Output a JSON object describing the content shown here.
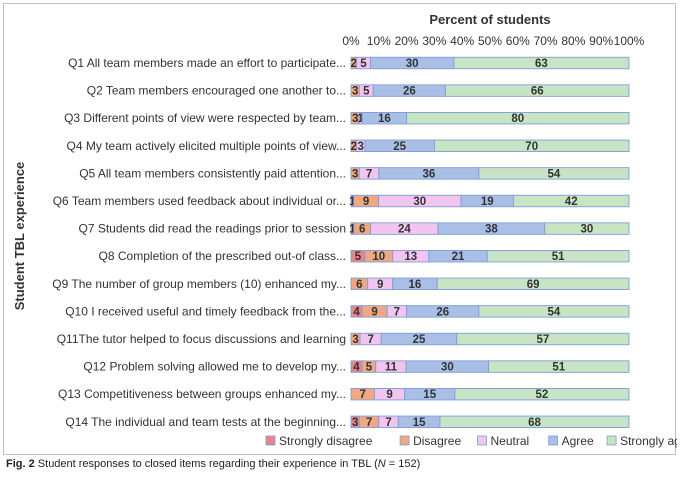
{
  "figure": {
    "caption_label": "Fig. 2",
    "caption_text": "Student responses to closed items regarding their experience in TBL (",
    "caption_n_symbol": "N",
    "caption_n_value": " = 152)"
  },
  "chart_data": {
    "type": "bar",
    "orientation": "horizontal",
    "stacked": "percent",
    "title": "Percent of students",
    "ylabel": "Student TBL experience",
    "xlim": [
      0,
      100
    ],
    "x_ticks": [
      "0%",
      "10%",
      "20%",
      "30%",
      "40%",
      "50%",
      "60%",
      "70%",
      "80%",
      "90%",
      "100%"
    ],
    "categories": [
      "Q1 All team members made an effort to participate...",
      "Q2 Team members encouraged one another to...",
      "Q3 Different points of view were respected by team...",
      "Q4 My team actively elicited multiple points of view...",
      "Q5 All team members consistently paid attention...",
      "Q6 Team members used feedback about individual or...",
      "Q7 Students did read the readings prior to session",
      "Q8 Completion of the prescribed out-of class...",
      "Q9 The number of group members (10) enhanced my...",
      "Q10 I received useful and timely feedback from the...",
      "Q11The tutor helped to focus discussions and learning",
      "Q12 Problem solving allowed me to develop my...",
      "Q13 Competitiveness between groups enhanced my...",
      "Q14 The individual and team tests at the beginning..."
    ],
    "series": [
      {
        "name": "Strongly disagree",
        "color": "#e8848c",
        "values": [
          0,
          0,
          0,
          0,
          0,
          1,
          1,
          5,
          0,
          4,
          0,
          4,
          0,
          3
        ]
      },
      {
        "name": "Disagree",
        "color": "#f0a882",
        "values": [
          2,
          3,
          3,
          2,
          3,
          9,
          6,
          10,
          6,
          9,
          3,
          5,
          7,
          7
        ]
      },
      {
        "name": "Neutral",
        "color": "#f2c4f0",
        "values": [
          5,
          5,
          1,
          3,
          7,
          30,
          24,
          13,
          9,
          7,
          7,
          11,
          9,
          7
        ]
      },
      {
        "name": "Agree",
        "color": "#a9bfe6",
        "values": [
          30,
          26,
          16,
          25,
          36,
          19,
          38,
          21,
          16,
          26,
          25,
          30,
          15,
          15
        ]
      },
      {
        "name": "Strongly agree",
        "color": "#c7e5c4",
        "values": [
          63,
          66,
          80,
          70,
          54,
          42,
          30,
          51,
          69,
          54,
          57,
          51,
          52,
          68
        ]
      }
    ],
    "data_labels": [
      [
        "",
        "2",
        "5",
        "30",
        "63"
      ],
      [
        "",
        "3",
        "5",
        "26",
        "66"
      ],
      [
        "",
        "3",
        "1",
        "16",
        "80"
      ],
      [
        "",
        "2",
        "3",
        "25",
        "70"
      ],
      [
        "",
        "3",
        "7",
        "36",
        "54"
      ],
      [
        "1",
        "9",
        "30",
        "19",
        "42"
      ],
      [
        "1",
        "6",
        "24",
        "38",
        "30"
      ],
      [
        "5",
        "10",
        "13",
        "21",
        "51"
      ],
      [
        "",
        "6",
        "9",
        "16",
        "69"
      ],
      [
        "4",
        "9",
        "7",
        "26",
        "54"
      ],
      [
        "",
        "3",
        "7",
        "25",
        "57"
      ],
      [
        "4",
        "5",
        "11",
        "30",
        "51"
      ],
      [
        "",
        "7",
        "9",
        "15",
        "52"
      ],
      [
        "3",
        "7",
        "7",
        "15",
        "68"
      ]
    ],
    "legend_position": "bottom",
    "grid": false
  }
}
